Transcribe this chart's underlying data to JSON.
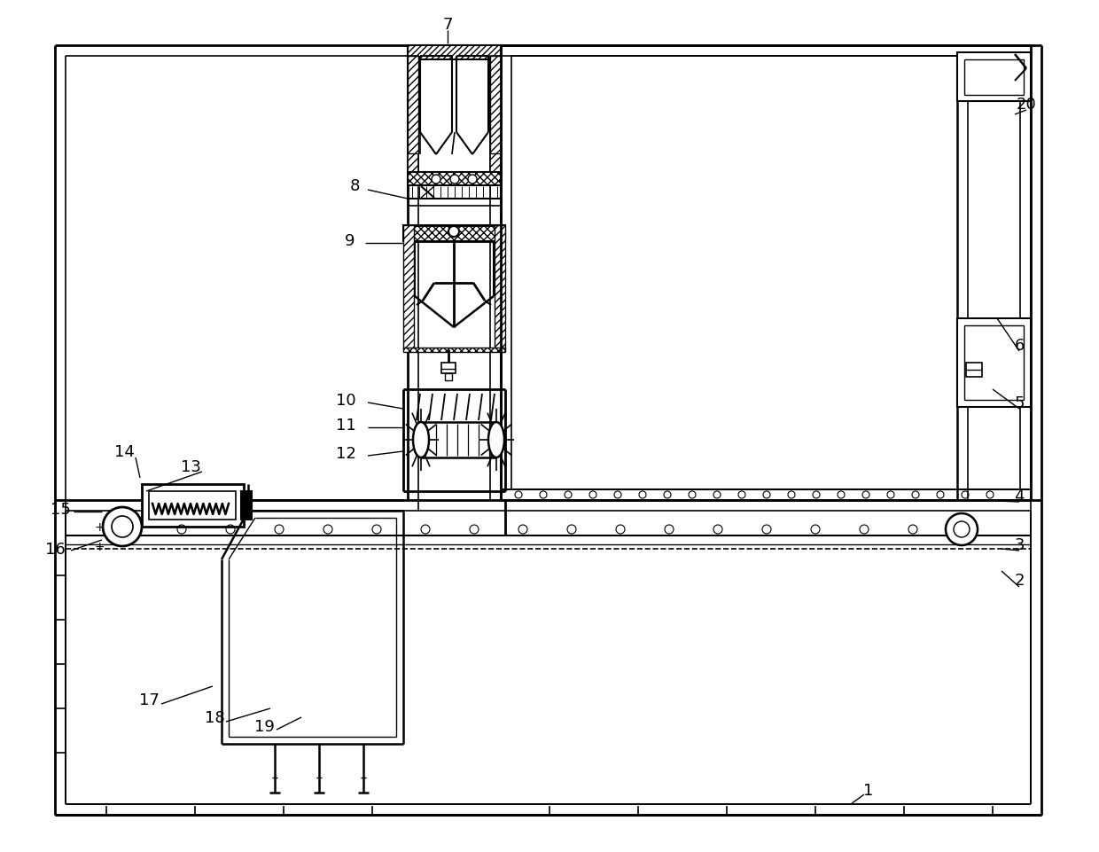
{
  "bg_color": "#ffffff",
  "line_color": "#000000",
  "figsize": [
    12.4,
    9.62
  ],
  "dpi": 100
}
